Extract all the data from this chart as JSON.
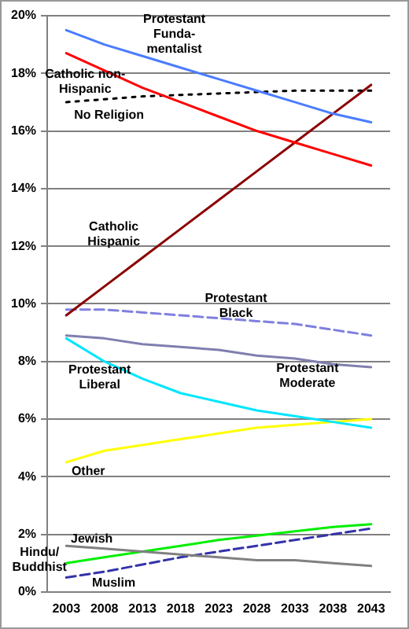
{
  "chart_data": {
    "type": "line",
    "categories": [
      "2003",
      "2008",
      "2013",
      "2018",
      "2023",
      "2028",
      "2033",
      "2038",
      "2043"
    ],
    "ylim": [
      0,
      20
    ],
    "yticks": [
      {
        "value": 0,
        "label": "0%"
      },
      {
        "value": 2,
        "label": "2%"
      },
      {
        "value": 4,
        "label": "4%"
      },
      {
        "value": 6,
        "label": "6%"
      },
      {
        "value": 8,
        "label": "8%"
      },
      {
        "value": 10,
        "label": "10%"
      },
      {
        "value": 12,
        "label": "12%"
      },
      {
        "value": 14,
        "label": "14%"
      },
      {
        "value": 16,
        "label": "16%"
      },
      {
        "value": 18,
        "label": "18%"
      },
      {
        "value": 20,
        "label": "20%"
      }
    ],
    "grid": "y",
    "legend": false,
    "marker": "none",
    "series": [
      {
        "name": "Protestant\nFunda-\nmentalist",
        "color": "#4a7cff",
        "values": [
          19.5,
          19.0,
          18.6,
          18.2,
          17.8,
          17.4,
          17.0,
          16.6,
          16.3
        ]
      },
      {
        "name": "Catholic non-\nHispanic",
        "color": "#ff0000",
        "values": [
          18.7,
          18.1,
          17.5,
          17.0,
          16.5,
          16.0,
          15.6,
          15.2,
          14.8
        ]
      },
      {
        "name": "No Religion",
        "color": "#000000",
        "line_style": "dotted",
        "values": [
          17.0,
          17.1,
          17.2,
          17.25,
          17.3,
          17.35,
          17.4,
          17.4,
          17.4
        ]
      },
      {
        "name": "Catholic\nHispanic",
        "color": "#8b0000",
        "values": [
          9.6,
          10.6,
          11.6,
          12.6,
          13.6,
          14.6,
          15.6,
          16.6,
          17.6
        ]
      },
      {
        "name": "Protestant\nBlack",
        "color": "#7f7fe0",
        "line_style": "dashed",
        "values": [
          9.8,
          9.8,
          9.7,
          9.6,
          9.5,
          9.4,
          9.3,
          9.1,
          8.9
        ]
      },
      {
        "name": "Protestant\nModerate",
        "color": "#7f7fb0",
        "values": [
          8.9,
          8.8,
          8.6,
          8.5,
          8.4,
          8.2,
          8.1,
          7.9,
          7.8
        ]
      },
      {
        "name": "Protestant\nLiberal",
        "color": "#00e5ff",
        "values": [
          8.8,
          8.0,
          7.4,
          6.9,
          6.6,
          6.3,
          6.1,
          5.9,
          5.7
        ]
      },
      {
        "name": "Other",
        "color": "#ffff00",
        "values": [
          4.5,
          4.9,
          5.1,
          5.3,
          5.5,
          5.7,
          5.8,
          5.9,
          6.0
        ]
      },
      {
        "name": "Jewish",
        "color": "#808080",
        "values": [
          1.6,
          1.5,
          1.4,
          1.3,
          1.2,
          1.1,
          1.1,
          1.0,
          0.9
        ]
      },
      {
        "name": "Hindu/\nBuddhist",
        "color": "#00ee00",
        "values": [
          1.0,
          1.2,
          1.4,
          1.6,
          1.8,
          1.95,
          2.1,
          2.25,
          2.35
        ]
      },
      {
        "name": "Muslim",
        "color": "#3333aa",
        "line_style": "dashed",
        "values": [
          0.5,
          0.7,
          0.95,
          1.2,
          1.4,
          1.6,
          1.8,
          2.0,
          2.2
        ]
      }
    ]
  }
}
